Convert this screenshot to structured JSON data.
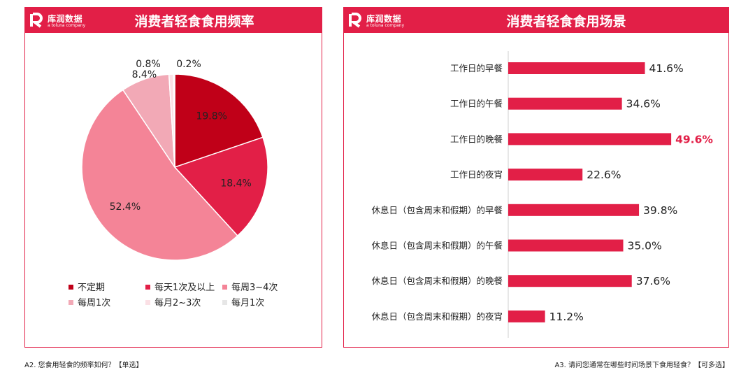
{
  "logo": {
    "name": "库润数据",
    "sub": "a toluna company"
  },
  "footnotes": {
    "left": "A2. 您食用轻食的频率如何？【单选】",
    "right": "A3. 请问您通常在哪些时间场景下食用轻食？【可多选】"
  },
  "colors": {
    "brand": "#e21f47",
    "highlight": "#e21f47"
  },
  "chart_data": [
    {
      "type": "pie",
      "title": "消费者轻食食用频率",
      "unit": "%",
      "legend_position": "bottom",
      "slices": [
        {
          "label": "不定期",
          "value": 19.8,
          "display": "19.8%",
          "color": "#c00018"
        },
        {
          "label": "每天1次及以上",
          "value": 18.4,
          "display": "18.4%",
          "color": "#e21f47"
        },
        {
          "label": "每周3~4次",
          "value": 52.4,
          "display": "52.4%",
          "color": "#f48497"
        },
        {
          "label": "每周1次",
          "value": 8.4,
          "display": "8.4%",
          "color": "#f2a9b6"
        },
        {
          "label": "每月2~3次",
          "value": 0.8,
          "display": "0.8%",
          "color": "#fbe0e5"
        },
        {
          "label": "每月1次",
          "value": 0.2,
          "display": "0.2%",
          "color": "#e6e6e6"
        }
      ]
    },
    {
      "type": "bar",
      "orientation": "horizontal",
      "title": "消费者轻食食用场景",
      "unit": "%",
      "categories": [
        "工作日的早餐",
        "工作日的午餐",
        "工作日的晚餐",
        "工作日的夜宵",
        "休息日（包含周末和假期）的早餐",
        "休息日（包含周末和假期）的午餐",
        "休息日（包含周末和假期）的晚餐",
        "休息日（包含周末和假期）的夜宵"
      ],
      "values": [
        41.6,
        34.6,
        49.6,
        22.6,
        39.8,
        35.0,
        37.6,
        11.2
      ],
      "labels": [
        "41.6%",
        "34.6%",
        "49.6%",
        "22.6%",
        "39.8%",
        "35.0%",
        "37.6%",
        "11.2%"
      ],
      "highlight_index": 2,
      "xlim": [
        0,
        50
      ]
    }
  ]
}
